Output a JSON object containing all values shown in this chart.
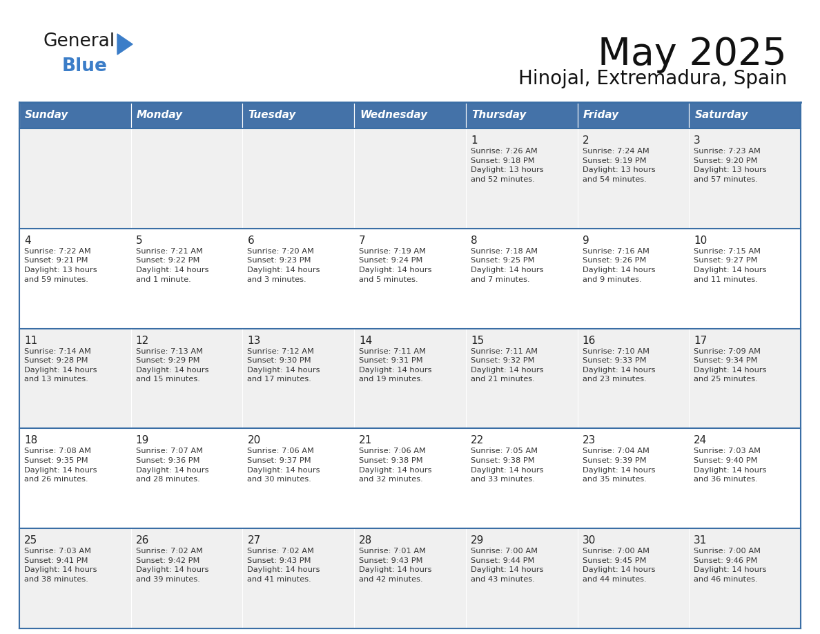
{
  "title": "May 2025",
  "subtitle": "Hinojal, Extremadura, Spain",
  "header_bg": "#4472A8",
  "header_text": "#FFFFFF",
  "row_bg_odd": "#F0F0F0",
  "row_bg_even": "#FFFFFF",
  "border_color": "#3A6EA5",
  "text_color": "#222222",
  "info_text_color": "#333333",
  "day_names": [
    "Sunday",
    "Monday",
    "Tuesday",
    "Wednesday",
    "Thursday",
    "Friday",
    "Saturday"
  ],
  "calendar": [
    [
      "",
      "",
      "",
      "",
      "1\nSunrise: 7:26 AM\nSunset: 9:18 PM\nDaylight: 13 hours\nand 52 minutes.",
      "2\nSunrise: 7:24 AM\nSunset: 9:19 PM\nDaylight: 13 hours\nand 54 minutes.",
      "3\nSunrise: 7:23 AM\nSunset: 9:20 PM\nDaylight: 13 hours\nand 57 minutes."
    ],
    [
      "4\nSunrise: 7:22 AM\nSunset: 9:21 PM\nDaylight: 13 hours\nand 59 minutes.",
      "5\nSunrise: 7:21 AM\nSunset: 9:22 PM\nDaylight: 14 hours\nand 1 minute.",
      "6\nSunrise: 7:20 AM\nSunset: 9:23 PM\nDaylight: 14 hours\nand 3 minutes.",
      "7\nSunrise: 7:19 AM\nSunset: 9:24 PM\nDaylight: 14 hours\nand 5 minutes.",
      "8\nSunrise: 7:18 AM\nSunset: 9:25 PM\nDaylight: 14 hours\nand 7 minutes.",
      "9\nSunrise: 7:16 AM\nSunset: 9:26 PM\nDaylight: 14 hours\nand 9 minutes.",
      "10\nSunrise: 7:15 AM\nSunset: 9:27 PM\nDaylight: 14 hours\nand 11 minutes."
    ],
    [
      "11\nSunrise: 7:14 AM\nSunset: 9:28 PM\nDaylight: 14 hours\nand 13 minutes.",
      "12\nSunrise: 7:13 AM\nSunset: 9:29 PM\nDaylight: 14 hours\nand 15 minutes.",
      "13\nSunrise: 7:12 AM\nSunset: 9:30 PM\nDaylight: 14 hours\nand 17 minutes.",
      "14\nSunrise: 7:11 AM\nSunset: 9:31 PM\nDaylight: 14 hours\nand 19 minutes.",
      "15\nSunrise: 7:11 AM\nSunset: 9:32 PM\nDaylight: 14 hours\nand 21 minutes.",
      "16\nSunrise: 7:10 AM\nSunset: 9:33 PM\nDaylight: 14 hours\nand 23 minutes.",
      "17\nSunrise: 7:09 AM\nSunset: 9:34 PM\nDaylight: 14 hours\nand 25 minutes."
    ],
    [
      "18\nSunrise: 7:08 AM\nSunset: 9:35 PM\nDaylight: 14 hours\nand 26 minutes.",
      "19\nSunrise: 7:07 AM\nSunset: 9:36 PM\nDaylight: 14 hours\nand 28 minutes.",
      "20\nSunrise: 7:06 AM\nSunset: 9:37 PM\nDaylight: 14 hours\nand 30 minutes.",
      "21\nSunrise: 7:06 AM\nSunset: 9:38 PM\nDaylight: 14 hours\nand 32 minutes.",
      "22\nSunrise: 7:05 AM\nSunset: 9:38 PM\nDaylight: 14 hours\nand 33 minutes.",
      "23\nSunrise: 7:04 AM\nSunset: 9:39 PM\nDaylight: 14 hours\nand 35 minutes.",
      "24\nSunrise: 7:03 AM\nSunset: 9:40 PM\nDaylight: 14 hours\nand 36 minutes."
    ],
    [
      "25\nSunrise: 7:03 AM\nSunset: 9:41 PM\nDaylight: 14 hours\nand 38 minutes.",
      "26\nSunrise: 7:02 AM\nSunset: 9:42 PM\nDaylight: 14 hours\nand 39 minutes.",
      "27\nSunrise: 7:02 AM\nSunset: 9:43 PM\nDaylight: 14 hours\nand 41 minutes.",
      "28\nSunrise: 7:01 AM\nSunset: 9:43 PM\nDaylight: 14 hours\nand 42 minutes.",
      "29\nSunrise: 7:00 AM\nSunset: 9:44 PM\nDaylight: 14 hours\nand 43 minutes.",
      "30\nSunrise: 7:00 AM\nSunset: 9:45 PM\nDaylight: 14 hours\nand 44 minutes.",
      "31\nSunrise: 7:00 AM\nSunset: 9:46 PM\nDaylight: 14 hours\nand 46 minutes."
    ]
  ],
  "logo_color_general": "#1a1a1a",
  "logo_color_blue": "#3B7DC8",
  "logo_triangle_color": "#3B7DC8"
}
